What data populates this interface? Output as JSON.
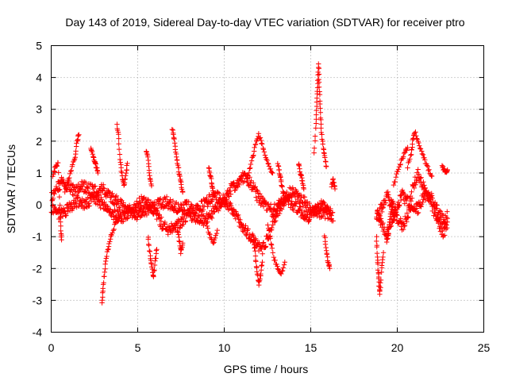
{
  "chart_data": {
    "type": "scatter",
    "title": "Day 143 of 2019, Sidereal Day-to-day VTEC variation (SDTVAR) for receiver ptro",
    "xlabel": "GPS time / hours",
    "ylabel": "SDTVAR / TECUs",
    "xlim": [
      0,
      25
    ],
    "ylim": [
      -4,
      5
    ],
    "xticks": [
      "0",
      "5",
      "10",
      "15",
      "20",
      "25"
    ],
    "yticks": [
      "5",
      "4",
      "3",
      "2",
      "1",
      "0",
      "-1",
      "-2",
      "-3",
      "-4"
    ],
    "grid": true,
    "marker": "+",
    "series": [
      {
        "name": "SDTVAR",
        "color": "#ff0000",
        "segments": [
          {
            "x": [
              0.0,
              0.3,
              0.6,
              1.0,
              1.4,
              1.8,
              2.2,
              2.6,
              3.0,
              3.4,
              3.8,
              4.2,
              4.6,
              5.0,
              5.4,
              5.8,
              6.2,
              6.6,
              7.0,
              7.4,
              7.8,
              8.2,
              8.6,
              9.0,
              9.4,
              9.8,
              10.2,
              10.6,
              11.0,
              11.4,
              11.8,
              12.2,
              12.6,
              13.0,
              13.4,
              13.8,
              14.2,
              14.6,
              15.0,
              15.4,
              15.8,
              16.2
            ],
            "y": [
              0.2,
              0.5,
              0.7,
              0.6,
              0.4,
              0.6,
              0.5,
              0.4,
              0.5,
              0.3,
              0.1,
              -0.1,
              -0.2,
              -0.3,
              -0.2,
              -0.1,
              0.0,
              0.1,
              0.0,
              -0.1,
              0.0,
              -0.2,
              -0.1,
              0.1,
              0.3,
              0.2,
              0.0,
              -0.3,
              -0.6,
              -0.9,
              -1.2,
              -1.4,
              -0.9,
              -0.3,
              0.1,
              0.4,
              0.3,
              0.1,
              -0.1,
              -0.2,
              -0.3,
              -0.3
            ]
          },
          {
            "x": [
              0.0,
              0.4,
              0.8,
              1.2,
              1.6,
              2.0,
              2.4,
              2.8,
              3.2,
              3.6,
              4.0,
              4.4,
              4.8,
              5.2,
              5.6,
              6.0,
              6.4,
              6.8,
              7.2,
              7.6,
              8.0,
              8.4,
              8.8,
              9.2,
              9.6,
              10.0,
              10.4,
              10.8,
              11.2,
              11.6,
              12.0,
              12.4,
              12.8,
              13.2,
              13.6,
              14.0,
              14.4,
              14.8,
              15.2,
              15.6,
              16.0,
              16.3
            ],
            "y": [
              -0.1,
              -0.3,
              -0.2,
              0.0,
              0.1,
              0.0,
              0.2,
              0.1,
              -0.1,
              -0.3,
              -0.4,
              -0.3,
              -0.1,
              0.1,
              0.0,
              -0.2,
              -0.6,
              -0.8,
              -0.7,
              -0.5,
              -0.3,
              -0.4,
              -0.5,
              -0.3,
              -0.1,
              0.2,
              0.5,
              0.7,
              0.9,
              0.6,
              0.2,
              0.0,
              -0.2,
              0.0,
              0.2,
              0.0,
              -0.2,
              -0.4,
              -0.2,
              0.0,
              -0.2,
              -0.4
            ]
          },
          {
            "x": [
              18.8,
              19.1,
              19.4,
              19.7,
              20.0,
              20.3,
              20.6,
              20.9,
              21.2,
              21.5,
              21.8,
              22.1,
              22.4,
              22.7,
              22.9
            ],
            "y": [
              -0.3,
              -0.6,
              -0.9,
              -0.5,
              -0.1,
              0.3,
              0.1,
              -0.2,
              -0.1,
              0.2,
              0.4,
              0.1,
              -0.3,
              -0.5,
              -0.3
            ]
          },
          {
            "x": [
              18.8,
              19.1,
              19.4,
              19.7,
              20.0,
              20.3,
              20.6,
              20.9,
              21.2,
              21.5,
              21.8,
              22.1,
              22.4,
              22.7,
              22.9
            ],
            "y": [
              -0.4,
              -0.1,
              0.3,
              0.0,
              -0.4,
              -0.7,
              -0.3,
              0.5,
              1.0,
              0.6,
              0.2,
              -0.2,
              -0.6,
              -0.9,
              -0.6
            ]
          }
        ],
        "excursions": [
          {
            "x": [
              0.1,
              0.25,
              0.4,
              0.5,
              0.55,
              0.6
            ],
            "y": [
              0.9,
              1.2,
              1.3,
              0.0,
              -0.7,
              -1.1
            ]
          },
          {
            "x": [
              0.8,
              1.0,
              1.2,
              1.4,
              1.5,
              1.6
            ],
            "y": [
              0.4,
              0.8,
              1.2,
              1.5,
              2.0,
              2.2
            ]
          },
          {
            "x": [
              2.3,
              2.4,
              2.5,
              2.6,
              2.7
            ],
            "y": [
              1.8,
              1.6,
              1.4,
              1.2,
              1.0
            ]
          },
          {
            "x": [
              2.95,
              3.0,
              3.1,
              3.2,
              3.35,
              3.5,
              3.7,
              3.9
            ],
            "y": [
              -3.05,
              -2.6,
              -2.1,
              -1.6,
              -1.2,
              -0.9,
              -0.6,
              -0.3
            ]
          },
          {
            "x": [
              3.8,
              3.9,
              4.0,
              4.1,
              4.2,
              4.3,
              4.4
            ],
            "y": [
              2.5,
              2.1,
              1.3,
              0.9,
              0.6,
              0.9,
              1.3
            ]
          },
          {
            "x": [
              5.5,
              5.6,
              5.7,
              5.8
            ],
            "y": [
              1.7,
              1.4,
              0.9,
              0.6
            ]
          },
          {
            "x": [
              5.6,
              5.7,
              5.8,
              5.9,
              6.0,
              6.1
            ],
            "y": [
              -1.0,
              -1.5,
              -1.9,
              -2.3,
              -1.8,
              -1.4
            ]
          },
          {
            "x": [
              7.0,
              7.1,
              7.2,
              7.3,
              7.4,
              7.5,
              7.6
            ],
            "y": [
              2.4,
              2.1,
              1.7,
              1.3,
              1.0,
              0.7,
              0.4
            ]
          },
          {
            "x": [
              7.3,
              7.4,
              7.5,
              7.6
            ],
            "y": [
              -0.8,
              -1.1,
              -1.5,
              -1.2
            ]
          },
          {
            "x": [
              9.1,
              9.2,
              9.3,
              9.4
            ],
            "y": [
              1.2,
              0.9,
              0.6,
              0.3
            ]
          },
          {
            "x": [
              9.0,
              9.2,
              9.4,
              9.6
            ],
            "y": [
              -0.7,
              -1.0,
              -1.2,
              -0.8
            ]
          },
          {
            "x": [
              11.3,
              11.5,
              11.7,
              11.85,
              12.0,
              12.2,
              12.4,
              12.6,
              12.8
            ],
            "y": [
              0.8,
              1.2,
              1.6,
              2.0,
              2.2,
              1.9,
              1.5,
              1.2,
              1.0
            ]
          },
          {
            "x": [
              11.7,
              11.8,
              11.9,
              12.0,
              12.1,
              12.2
            ],
            "y": [
              -1.0,
              -1.6,
              -2.1,
              -2.5,
              -2.2,
              -1.8
            ]
          },
          {
            "x": [
              12.5,
              12.7,
              12.9,
              13.1,
              13.3,
              13.5
            ],
            "y": [
              -0.6,
              -1.2,
              -1.7,
              -2.0,
              -2.2,
              -1.8
            ]
          },
          {
            "x": [
              13.1,
              13.2,
              13.3,
              13.4,
              13.5
            ],
            "y": [
              1.3,
              1.0,
              0.7,
              0.4,
              0.2
            ]
          },
          {
            "x": [
              14.3,
              14.4,
              14.5,
              14.6
            ],
            "y": [
              1.3,
              1.0,
              0.8,
              0.5
            ]
          },
          {
            "x": [
              15.2,
              15.3,
              15.35,
              15.4,
              15.45,
              15.5,
              15.55,
              15.6,
              15.7,
              15.8,
              15.9
            ],
            "y": [
              1.6,
              2.6,
              3.2,
              3.8,
              4.4,
              3.7,
              3.0,
              2.4,
              1.9,
              1.5,
              1.2
            ]
          },
          {
            "x": [
              15.8,
              15.9,
              16.0,
              16.1
            ],
            "y": [
              -1.0,
              -1.4,
              -1.8,
              -2.0
            ]
          },
          {
            "x": [
              16.2,
              16.3,
              16.4
            ],
            "y": [
              0.6,
              0.8,
              0.5
            ]
          },
          {
            "x": [
              18.8,
              18.85,
              18.9,
              18.95,
              19.0,
              19.1,
              19.2
            ],
            "y": [
              -1.0,
              -1.6,
              -2.1,
              -2.5,
              -2.8,
              -2.0,
              -1.5
            ]
          },
          {
            "x": [
              19.4,
              19.5,
              19.6,
              19.7,
              19.8
            ],
            "y": [
              -1.2,
              -0.8,
              -0.4,
              0.0,
              -0.5
            ]
          },
          {
            "x": [
              19.8,
              20.0,
              20.2,
              20.4,
              20.6
            ],
            "y": [
              0.6,
              1.0,
              1.3,
              1.6,
              1.8
            ]
          },
          {
            "x": [
              20.6,
              20.8,
              20.9,
              21.0,
              21.2,
              21.4,
              21.6,
              21.8,
              22.0
            ],
            "y": [
              1.2,
              1.6,
              2.0,
              2.3,
              2.0,
              1.7,
              1.4,
              1.1,
              0.9
            ]
          },
          {
            "x": [
              22.6,
              22.7,
              22.8,
              22.9
            ],
            "y": [
              1.2,
              1.1,
              1.0,
              1.1
            ]
          }
        ]
      }
    ]
  }
}
